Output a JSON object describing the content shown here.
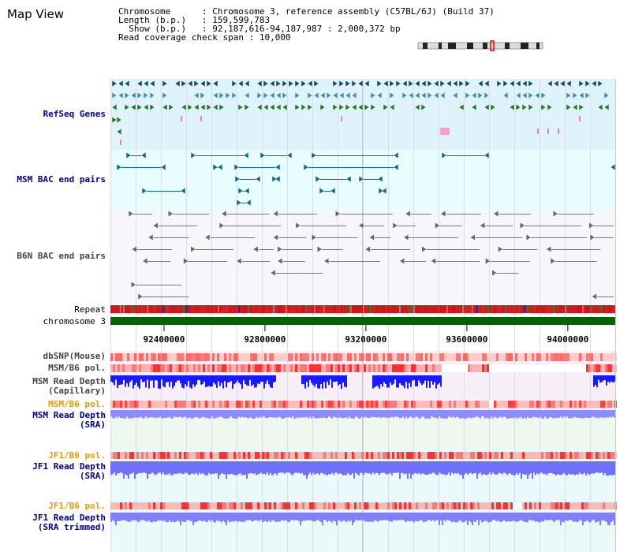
{
  "title": "Map View",
  "header": {
    "rows": [
      {
        "label": "Chromosome     ",
        "value": "Chromosome 3, reference assembly (C57BL/6J) (Build 37)"
      },
      {
        "label": "Length (b.p.)  ",
        "value": "159,599,783"
      },
      {
        "label": "  Show (b.p.)  ",
        "value": "92,187,616-94,187,987 : 2,000,372 bp"
      },
      {
        "label": "Read coverage check span",
        "value": "10,000"
      }
    ]
  },
  "tracks": {
    "refseq": "RefSeq Genes",
    "msm_bac": "MSM BAC end pairs",
    "b6n_bac": "B6N BAC end pairs",
    "repeat": "Repeat",
    "chromosome": "chromosome 3",
    "dbsnp": "dbSNP(Mouse)",
    "msm_b6_pol": "MSM/B6 pol.",
    "msm_depth_cap_1": "MSM Read Depth",
    "msm_depth_cap_2": "(Capillary)",
    "msm_b6_pol2": "MSM/B6 pol.",
    "msm_depth_sra_1": "MSM Read Depth",
    "msm_depth_sra_2": "(SRA)",
    "jf1_b6_pol": "JF1/B6 pol.",
    "jf1_depth_sra_1": "JF1 Read Depth",
    "jf1_depth_sra_2": "(SRA)",
    "jf1_b6_pol2": "JF1/B6 pol.",
    "jf1_depth_trim_1": "JF1 Read Depth",
    "jf1_depth_trim_2": "(SRA trimmed)"
  },
  "axis": {
    "start_bp": 92187616,
    "end_bp": 94187987,
    "ticks": [
      {
        "bp": 92400000,
        "label": "92400000"
      },
      {
        "bp": 92800000,
        "label": "92800000"
      },
      {
        "bp": 93200000,
        "label": "93200000"
      },
      {
        "bp": 93600000,
        "label": "93600000"
      },
      {
        "bp": 94000000,
        "label": "94000000"
      }
    ]
  },
  "colors": {
    "refseq_bg": "#dff3fb",
    "bac_bg": "#e8fdfd",
    "depth_blue": "#1a1aff",
    "depth_light": "#7f7fff",
    "pol_red": "#ff3333",
    "chromosome": "#006400",
    "pol_orange": "#e69a00"
  }
}
